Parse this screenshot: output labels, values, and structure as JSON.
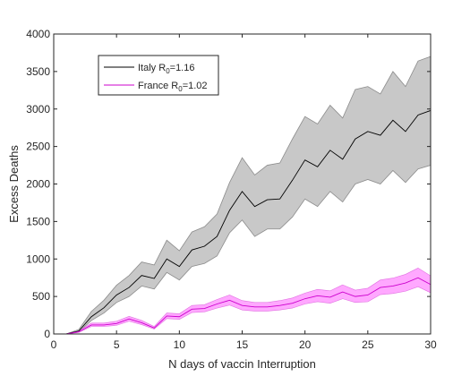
{
  "chart_data": {
    "type": "line",
    "title": "",
    "xlabel": "N days of vaccin Interruption",
    "ylabel": "Excess Deaths",
    "xlim": [
      0,
      30
    ],
    "ylim": [
      0,
      4000
    ],
    "x_ticks": [
      0,
      5,
      10,
      15,
      20,
      25,
      30
    ],
    "y_ticks": [
      0,
      500,
      1000,
      1500,
      2000,
      2500,
      3000,
      3500,
      4000
    ],
    "grid": false,
    "legend_position": "top-left",
    "x": [
      1,
      2,
      3,
      4,
      5,
      6,
      7,
      8,
      9,
      10,
      11,
      12,
      13,
      14,
      15,
      16,
      17,
      18,
      19,
      20,
      21,
      22,
      23,
      24,
      25,
      26,
      27,
      28,
      29,
      30
    ],
    "series": [
      {
        "name": "Italy R",
        "subscript": "0",
        "suffix": "=1.16",
        "color": "#000000",
        "band_color": "#c8c8c8",
        "values": [
          0,
          40,
          230,
          350,
          520,
          620,
          780,
          740,
          1000,
          900,
          1120,
          1170,
          1300,
          1650,
          1900,
          1700,
          1790,
          1800,
          2050,
          2320,
          2230,
          2450,
          2330,
          2600,
          2700,
          2650,
          2850,
          2700,
          2920,
          2980
        ],
        "lower": [
          0,
          30,
          180,
          280,
          420,
          500,
          640,
          600,
          820,
          720,
          900,
          940,
          1040,
          1350,
          1520,
          1300,
          1400,
          1400,
          1560,
          1800,
          1700,
          1900,
          1760,
          2000,
          2060,
          2000,
          2180,
          2020,
          2200,
          2250
        ],
        "upper": [
          0,
          60,
          300,
          450,
          650,
          780,
          960,
          920,
          1250,
          1110,
          1360,
          1430,
          1600,
          2020,
          2350,
          2120,
          2250,
          2280,
          2600,
          2900,
          2800,
          3050,
          2880,
          3260,
          3300,
          3200,
          3500,
          3300,
          3640,
          3700
        ]
      },
      {
        "name": "France R",
        "subscript": "0",
        "suffix": "=1.02",
        "color": "#cc00cc",
        "band_color": "#ffa8ff",
        "values": [
          0,
          30,
          120,
          120,
          140,
          200,
          150,
          80,
          240,
          230,
          330,
          340,
          400,
          450,
          380,
          360,
          360,
          380,
          410,
          470,
          510,
          490,
          560,
          500,
          520,
          620,
          640,
          680,
          750,
          660
        ],
        "lower": [
          0,
          20,
          100,
          100,
          115,
          170,
          125,
          65,
          205,
          195,
          285,
          295,
          345,
          385,
          320,
          305,
          305,
          320,
          345,
          400,
          430,
          410,
          470,
          420,
          430,
          525,
          540,
          570,
          630,
          550
        ],
        "upper": [
          0,
          40,
          145,
          145,
          170,
          235,
          180,
          100,
          280,
          270,
          380,
          390,
          460,
          520,
          445,
          420,
          420,
          445,
          480,
          545,
          595,
          575,
          655,
          585,
          610,
          720,
          745,
          795,
          880,
          775
        ]
      }
    ]
  }
}
